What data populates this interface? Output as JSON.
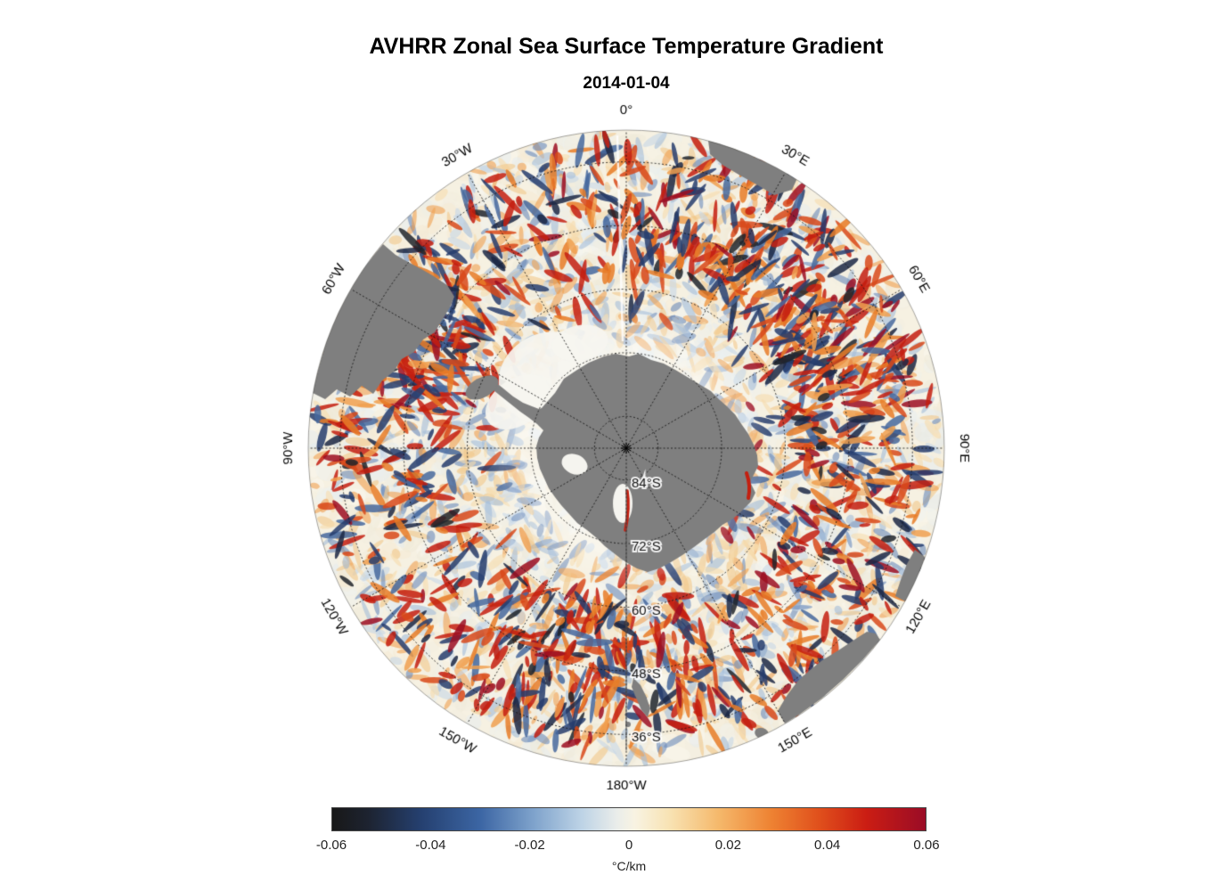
{
  "chart_data": {
    "type": "heatmap",
    "projection": "south polar stereographic",
    "title": "AVHRR Zonal Sea Surface Temperature Gradient",
    "subtitle": "2014-01-04",
    "variable": "zonal sea surface temperature gradient",
    "units": "°C/km",
    "value_range": [
      -0.06,
      0.06
    ],
    "field_description": "Noisy circumpolar eddy field around Antarctica: mostly near-zero (cream/white) with scattered positive (orange/red) and negative (blue/navy) mesoscale streaks; strongest activity near 0-60E, near South America (50-70W), and along 120-180E; continents masked gray; pale no-data patch over the Weddell Sea.",
    "land_color": "#7f7f7f",
    "background_color": "#ffffff",
    "colorbar": {
      "orientation": "horizontal",
      "ticks": [
        -0.06,
        -0.04,
        -0.02,
        0,
        0.02,
        0.04,
        0.06
      ],
      "tick_labels": [
        "-0.06",
        "-0.04",
        "-0.02",
        "0",
        "0.02",
        "0.04",
        "0.06"
      ],
      "units_label": "°C/km",
      "gradient_stops": [
        [
          0,
          "#181818"
        ],
        [
          6,
          "#1d2330"
        ],
        [
          15,
          "#254070"
        ],
        [
          25,
          "#3c66a4"
        ],
        [
          34,
          "#7fa3cc"
        ],
        [
          42,
          "#bdd3e6"
        ],
        [
          48,
          "#eaedea"
        ],
        [
          51,
          "#f8f3e2"
        ],
        [
          57,
          "#f8e2b2"
        ],
        [
          65,
          "#f5b96c"
        ],
        [
          74,
          "#ee8232"
        ],
        [
          82,
          "#e0501c"
        ],
        [
          90,
          "#cb1d13"
        ],
        [
          100,
          "#9a0c26"
        ]
      ]
    },
    "graticule": {
      "longitude_labels": [
        "0°",
        "30°E",
        "60°E",
        "90°E",
        "120°E",
        "150°E",
        "180°W",
        "150°W",
        "120°W",
        "90°W",
        "60°W",
        "30°W"
      ],
      "latitude_labels": [
        "84°S",
        "72°S",
        "60°S",
        "48°S",
        "36°S"
      ],
      "meridian_interval_deg": 30,
      "parallel_interval_deg": 12,
      "outer_edge_latitude_deg_s": 30
    },
    "field_palette": {
      "pale": [
        "#f7f2e3",
        "#f2eedf",
        "#edf1ef",
        "#e2ebf2",
        "#f6e8d0",
        "#fbf8ef",
        "#eee8d8"
      ],
      "light_blue": [
        "#c6d7e8",
        "#a3bdd8"
      ],
      "mid_blue": [
        "#6b8aba",
        "#47699e"
      ],
      "dark_blue": [
        "#273d6d",
        "#1c2845"
      ],
      "near_black": [
        "#20242c"
      ],
      "pale_orange": [
        "#f6dcae",
        "#f2c88a"
      ],
      "orange": [
        "#f0a050",
        "#e87c28"
      ],
      "red_orange": [
        "#d8491a"
      ],
      "red": [
        "#c41f10"
      ],
      "crimson": [
        "#9c0e22"
      ]
    }
  }
}
